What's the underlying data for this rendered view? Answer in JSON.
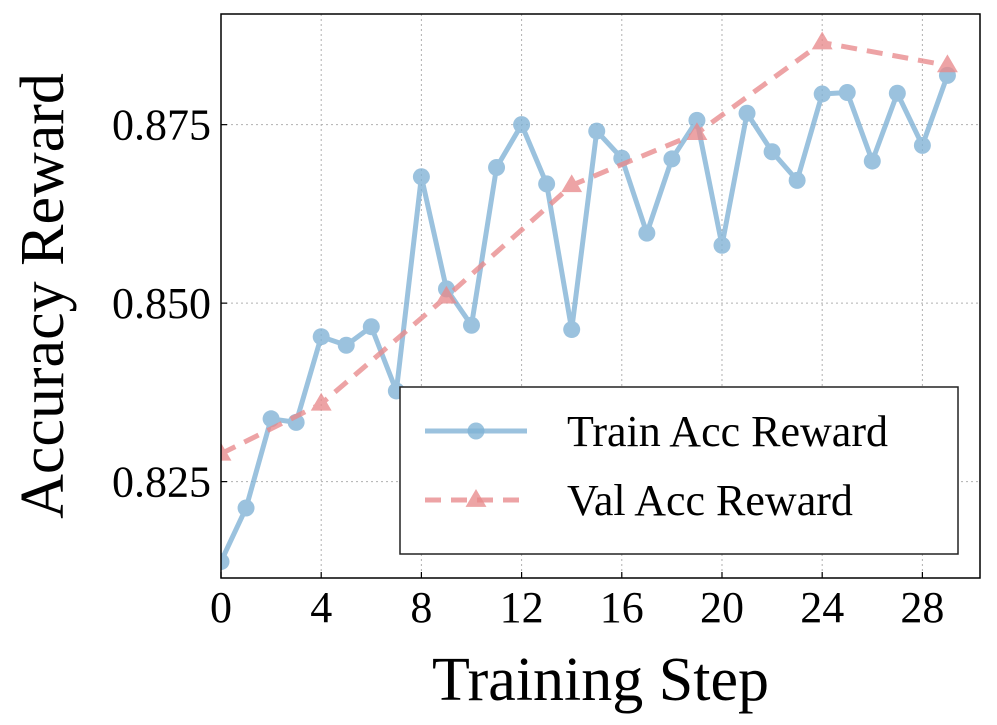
{
  "chart_data": {
    "type": "line",
    "xlabel": "Training Step",
    "ylabel": "Accuracy Reward",
    "xlim": [
      0,
      30.3
    ],
    "ylim": [
      0.8115,
      0.8905
    ],
    "xticks": [
      0,
      4,
      8,
      12,
      16,
      20,
      24,
      28
    ],
    "xtick_labels": [
      "0",
      "4",
      "8",
      "12",
      "16",
      "20",
      "24",
      "28"
    ],
    "yticks": [
      0.825,
      0.85,
      0.875
    ],
    "ytick_labels": [
      "0.825",
      "0.850",
      "0.875"
    ],
    "grid": true,
    "legend_position": "lower-right",
    "series": [
      {
        "name": "Train Acc Reward",
        "color": "#7fb2d5",
        "marker": "circle",
        "linestyle": "solid",
        "x": [
          0,
          1,
          2,
          3,
          4,
          5,
          6,
          7,
          8,
          9,
          10,
          11,
          12,
          13,
          14,
          15,
          16,
          17,
          18,
          19,
          20,
          21,
          22,
          23,
          24,
          25,
          26,
          27,
          28,
          29
        ],
        "y": [
          0.8138,
          0.8213,
          0.8338,
          0.8333,
          0.8453,
          0.8441,
          0.8467,
          0.8377,
          0.8677,
          0.852,
          0.8469,
          0.869,
          0.875,
          0.8667,
          0.8463,
          0.8741,
          0.8703,
          0.8598,
          0.8702,
          0.8756,
          0.8581,
          0.8766,
          0.8712,
          0.8672,
          0.8793,
          0.8795,
          0.8699,
          0.8794,
          0.8721,
          0.8819
        ]
      },
      {
        "name": "Val Acc Reward",
        "color": "#e88a8c",
        "marker": "triangle",
        "linestyle": "dashed",
        "x": [
          0,
          4,
          9,
          14,
          19,
          24,
          29
        ],
        "y": [
          0.8289,
          0.8359,
          0.8509,
          0.8665,
          0.8738,
          0.8865,
          0.8833
        ]
      }
    ]
  }
}
